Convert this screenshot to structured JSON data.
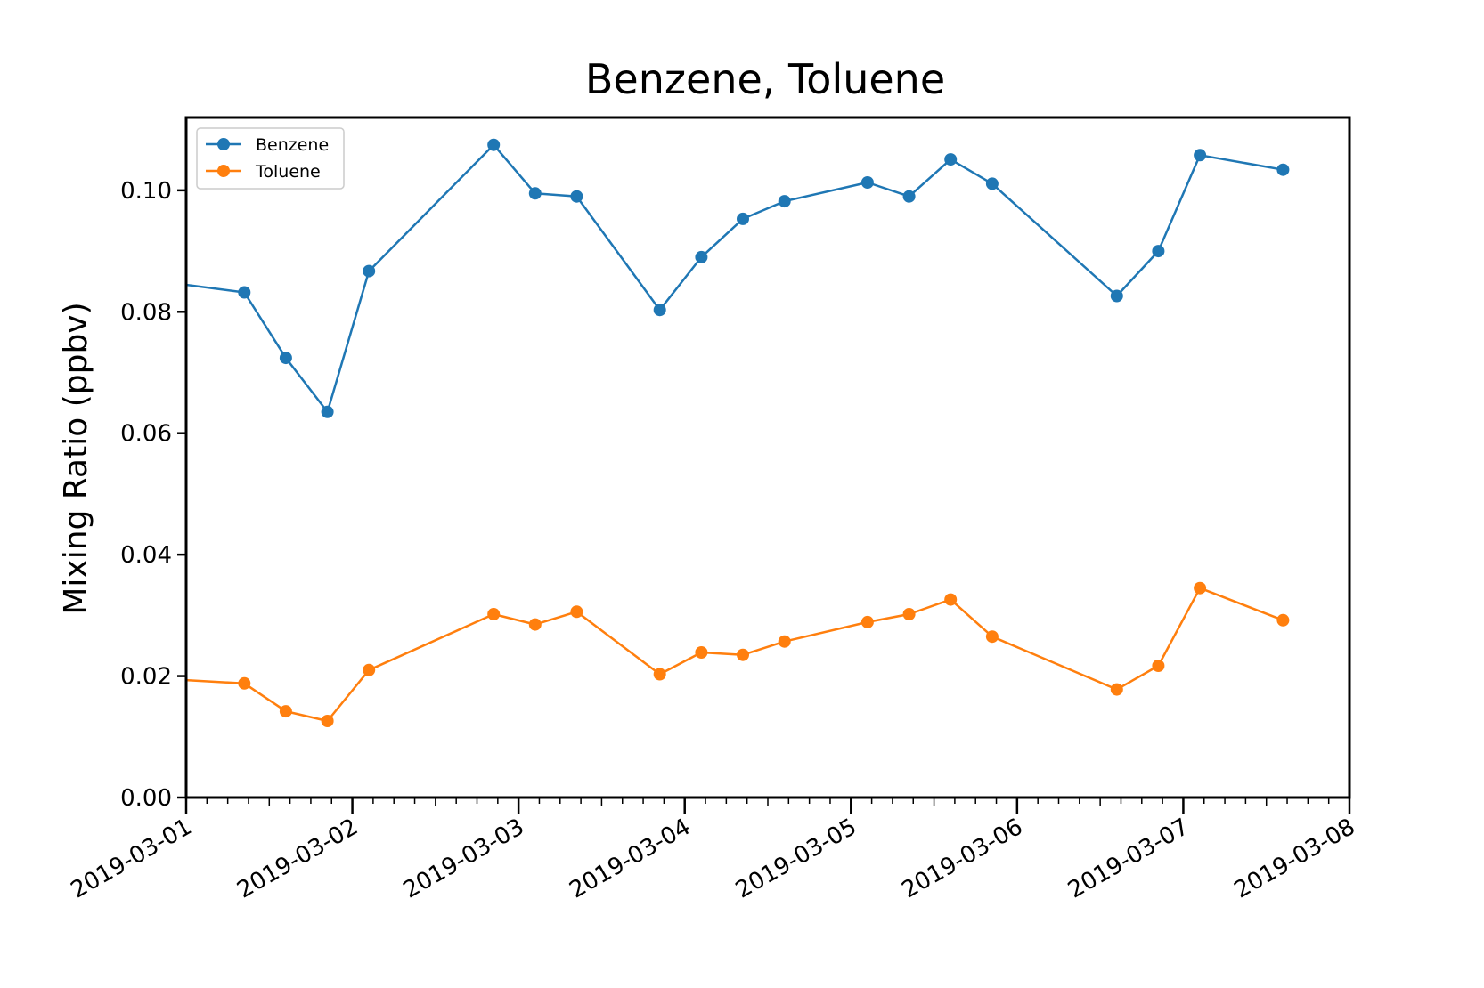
{
  "chart_data": {
    "type": "line",
    "title": "Benzene, Toluene",
    "xlabel": "",
    "ylabel": "Mixing Ratio (ppbv)",
    "x_unit": "days since 2019-03-01",
    "xlim": [
      0,
      7
    ],
    "ylim": [
      0,
      0.112
    ],
    "x_tick_values": [
      0,
      1,
      2,
      3,
      4,
      5,
      6,
      7
    ],
    "x_tick_labels": [
      "2019-03-01",
      "2019-03-02",
      "2019-03-03",
      "2019-03-04",
      "2019-03-05",
      "2019-03-06",
      "2019-03-07",
      "2019-03-08"
    ],
    "y_tick_values": [
      0.0,
      0.02,
      0.04,
      0.06,
      0.08,
      0.1
    ],
    "y_tick_labels": [
      "0.00",
      "0.02",
      "0.04",
      "0.06",
      "0.08",
      "0.10"
    ],
    "grid": false,
    "legend_position": "top-left",
    "x": [
      -0.1,
      0.35,
      0.6,
      0.85,
      1.1,
      1.85,
      2.1,
      2.35,
      2.85,
      3.1,
      3.35,
      3.6,
      4.1,
      4.35,
      4.6,
      4.85,
      5.6,
      5.85,
      6.1,
      6.6
    ],
    "series": [
      {
        "name": "Benzene",
        "color": "#1f77b4",
        "values": [
          0.0848,
          0.0832,
          0.0724,
          0.0635,
          0.0867,
          0.1075,
          0.0995,
          0.099,
          0.0803,
          0.089,
          0.0953,
          0.0982,
          0.1013,
          0.099,
          0.1051,
          0.1011,
          0.0826,
          0.09,
          0.1058,
          0.1034
        ]
      },
      {
        "name": "Toluene",
        "color": "#ff7f0e",
        "values": [
          0.0195,
          0.0188,
          0.0142,
          0.0126,
          0.021,
          0.0302,
          0.0285,
          0.0306,
          0.0203,
          0.0239,
          0.0235,
          0.0257,
          0.0289,
          0.0302,
          0.0326,
          0.0265,
          0.0178,
          0.0217,
          0.0345,
          0.0292
        ]
      }
    ]
  }
}
